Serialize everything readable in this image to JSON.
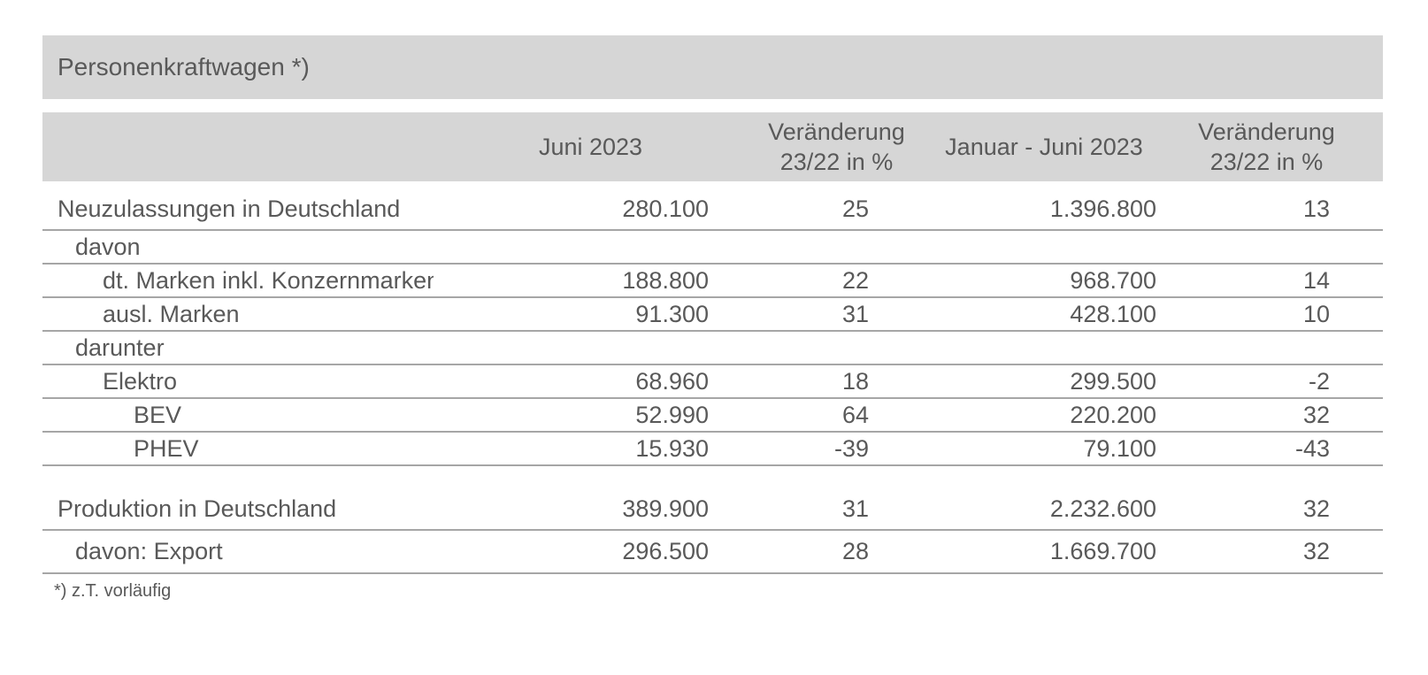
{
  "title": "Personenkraftwagen *)",
  "footnote": "*) z.T. vorläufig",
  "colors": {
    "band_bg": "#d6d6d6",
    "text": "#595959",
    "separator": "#a6a6a6",
    "page_bg": "#ffffff"
  },
  "table": {
    "columns": {
      "label": "",
      "juni_2023": "Juni 2023",
      "change_month": "Veränderung\n23/22 in %",
      "jan_juni_2023": "Januar - Juni 2023",
      "change_ytd": "Veränderung\n23/22 in %"
    },
    "rows": [
      {
        "label": "Neuzulassungen in Deutschland",
        "indent": 0,
        "values": [
          "280.100",
          "25",
          "1.396.800",
          "13"
        ]
      },
      {
        "label": "davon",
        "indent": 1,
        "values": [
          "",
          "",
          "",
          ""
        ]
      },
      {
        "label": "dt. Marken inkl. Konzernmarken",
        "indent": 2,
        "values": [
          "188.800",
          "22",
          "968.700",
          "14"
        ]
      },
      {
        "label": "ausl. Marken",
        "indent": 2,
        "values": [
          "91.300",
          "31",
          "428.100",
          "10"
        ]
      },
      {
        "label": "darunter",
        "indent": 1,
        "values": [
          "",
          "",
          "",
          ""
        ]
      },
      {
        "label": "Elektro",
        "indent": 2,
        "values": [
          "68.960",
          "18",
          "299.500",
          "-2"
        ]
      },
      {
        "label": "BEV",
        "indent": 3,
        "values": [
          "52.990",
          "64",
          "220.200",
          "32"
        ]
      },
      {
        "label": "PHEV",
        "indent": 3,
        "values": [
          "15.930",
          "-39",
          "79.100",
          "-43"
        ]
      },
      {
        "type": "spacer"
      },
      {
        "label": "Produktion in Deutschland",
        "indent": 0,
        "values": [
          "389.900",
          "31",
          "2.232.600",
          "32"
        ]
      },
      {
        "label": "davon: Export",
        "indent": 1,
        "values": [
          "296.500",
          "28",
          "1.669.700",
          "32"
        ]
      }
    ]
  }
}
